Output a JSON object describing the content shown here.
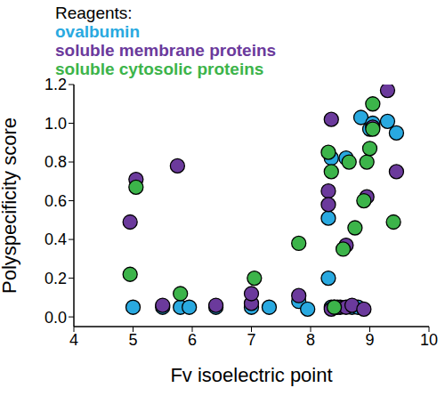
{
  "chart_data": {
    "type": "scatter",
    "legend_title": "Reagents:",
    "legend": "top-left",
    "x_label": "Fv isoelectric point",
    "y_label": "Polyspecificity score",
    "xlim": [
      4,
      10
    ],
    "xticks": [
      4,
      5,
      6,
      7,
      8,
      9,
      10
    ],
    "ylim": [
      -0.05,
      1.2
    ],
    "yticks": [
      {
        "value": 0,
        "label": "0.0"
      },
      0.2,
      0.4,
      0.6,
      0.8,
      {
        "value": 1,
        "label": "1.0"
      },
      1.2
    ],
    "grid": false,
    "series": [
      {
        "name": "ovalbumin",
        "color": "#29a9e0",
        "marker": "circle",
        "x": [
          5.0,
          5.5,
          5.8,
          5.95,
          6.4,
          7.0,
          7.3,
          7.8,
          7.95,
          8.3,
          8.3,
          8.35,
          8.35,
          8.4,
          8.5,
          8.6,
          8.7,
          8.8,
          8.85,
          9.0,
          9.05,
          9.3,
          9.45
        ],
        "values": [
          0.05,
          0.05,
          0.05,
          0.05,
          0.05,
          0.05,
          0.05,
          0.08,
          0.04,
          0.2,
          0.51,
          0.82,
          0.05,
          0.05,
          0.05,
          0.82,
          0.05,
          0.05,
          1.03,
          0.97,
          1.0,
          1.01,
          0.95
        ]
      },
      {
        "name": "soluble membrane proteins",
        "color": "#6b3a9c",
        "marker": "circle",
        "x": [
          4.95,
          5.05,
          5.5,
          5.75,
          6.4,
          7.0,
          7.0,
          7.8,
          8.3,
          8.3,
          8.35,
          8.35,
          8.45,
          8.6,
          8.6,
          8.7,
          8.9,
          8.95,
          9.05,
          9.3,
          9.45
        ],
        "values": [
          0.49,
          0.71,
          0.06,
          0.78,
          0.06,
          0.07,
          0.12,
          0.11,
          0.65,
          0.58,
          1.02,
          0.04,
          0.05,
          0.37,
          0.05,
          0.06,
          0.04,
          0.62,
          0.98,
          1.17,
          0.75
        ]
      },
      {
        "name": "soluble cytosolic proteins",
        "color": "#3cb44a",
        "marker": "circle",
        "x": [
          4.95,
          5.05,
          5.8,
          7.05,
          7.8,
          8.3,
          8.35,
          8.4,
          8.55,
          8.65,
          8.75,
          8.9,
          8.95,
          9.0,
          9.05,
          9.05,
          9.4
        ],
        "values": [
          0.22,
          0.67,
          0.12,
          0.2,
          0.38,
          0.85,
          0.75,
          0.05,
          0.35,
          0.8,
          0.46,
          0.6,
          0.8,
          0.87,
          1.1,
          0.97,
          0.49
        ]
      }
    ]
  }
}
